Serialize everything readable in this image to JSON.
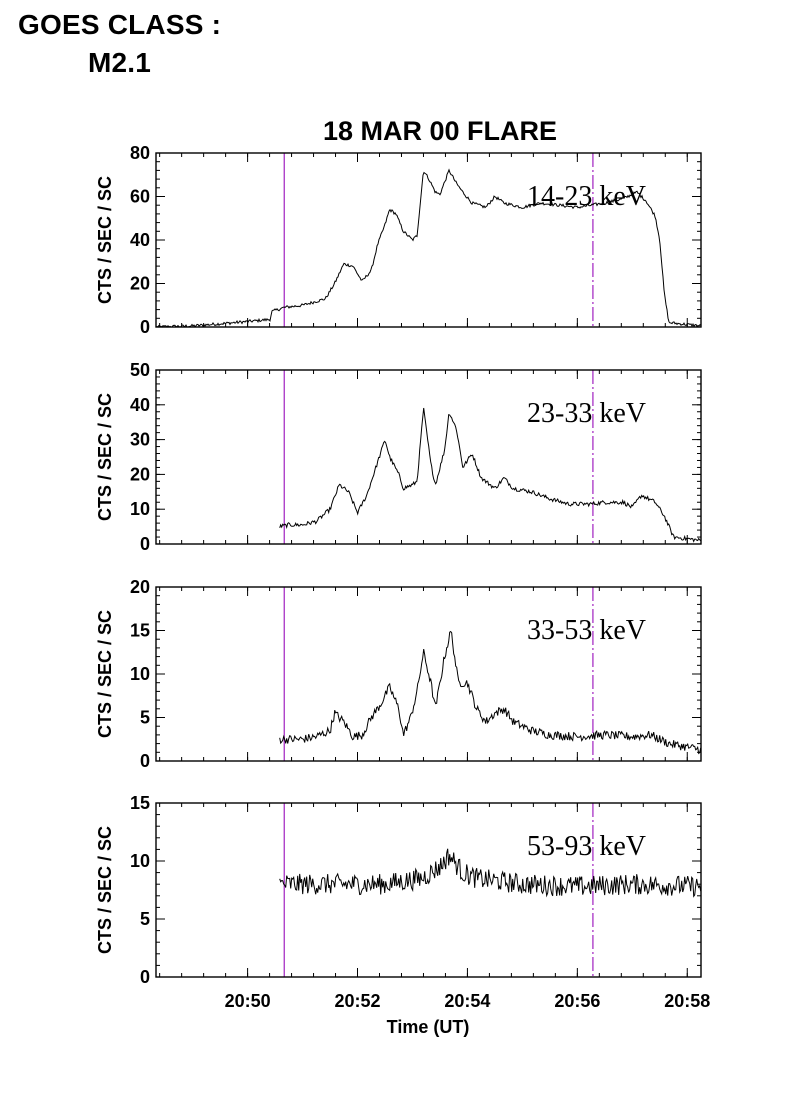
{
  "header": {
    "goes_line1": "GOES CLASS :",
    "goes_line2": "M2.1"
  },
  "colors": {
    "marker": "#a020c0",
    "trace": "#000000",
    "axis": "#000000"
  },
  "chart_data": {
    "type": "line",
    "title": "18 MAR 00 FLARE",
    "xlabel": "Time (UT)",
    "xlim": [
      "20:48:20",
      "20:58:15"
    ],
    "xticks": [
      "20:50",
      "20:52",
      "20:54",
      "20:56",
      "20:58"
    ],
    "xminor_ticks_per_major": 5,
    "grid": false,
    "vertical_markers": [
      {
        "time": "20:50:40",
        "style": "solid"
      },
      {
        "time": "20:56:17",
        "style": "dash-dot"
      }
    ],
    "panels": [
      {
        "band": "14-23 keV",
        "ylabel": "CTS / SEC / SC",
        "ylim": [
          0,
          80
        ],
        "yticks": [
          0,
          20,
          40,
          60,
          80
        ],
        "series": {
          "start": "20:48:20",
          "end": "20:58:15",
          "noise": 0.7,
          "points": [
            [
              "20:48:20",
              0
            ],
            [
              "20:49:00",
              0.5
            ],
            [
              "20:49:30",
              1.5
            ],
            [
              "20:50:00",
              2.5
            ],
            [
              "20:50:25",
              3.5
            ],
            [
              "20:50:26",
              7
            ],
            [
              "20:50:40",
              9
            ],
            [
              "20:51:00",
              10
            ],
            [
              "20:51:25",
              13
            ],
            [
              "20:51:35",
              20
            ],
            [
              "20:51:45",
              29
            ],
            [
              "20:51:55",
              28
            ],
            [
              "20:52:05",
              21
            ],
            [
              "20:52:15",
              26
            ],
            [
              "20:52:22",
              38
            ],
            [
              "20:52:30",
              47
            ],
            [
              "20:52:35",
              54
            ],
            [
              "20:52:42",
              52
            ],
            [
              "20:52:50",
              44
            ],
            [
              "20:53:00",
              40
            ],
            [
              "20:53:05",
              42
            ],
            [
              "20:53:12",
              72
            ],
            [
              "20:53:18",
              68
            ],
            [
              "20:53:25",
              62
            ],
            [
              "20:53:30",
              61
            ],
            [
              "20:53:40",
              72
            ],
            [
              "20:53:48",
              66
            ],
            [
              "20:53:55",
              62
            ],
            [
              "20:54:05",
              57
            ],
            [
              "20:54:20",
              55
            ],
            [
              "20:54:30",
              60
            ],
            [
              "20:54:40",
              57
            ],
            [
              "20:55:00",
              55
            ],
            [
              "20:55:20",
              57
            ],
            [
              "20:55:40",
              56
            ],
            [
              "20:56:00",
              55
            ],
            [
              "20:56:30",
              57
            ],
            [
              "20:56:50",
              59
            ],
            [
              "20:57:05",
              62
            ],
            [
              "20:57:15",
              58
            ],
            [
              "20:57:25",
              51
            ],
            [
              "20:57:30",
              40
            ],
            [
              "20:57:35",
              15
            ],
            [
              "20:57:40",
              2
            ],
            [
              "20:58:15",
              0.5
            ]
          ]
        }
      },
      {
        "band": "23-33 keV",
        "ylabel": "CTS / SEC / SC",
        "ylim": [
          0,
          50
        ],
        "yticks": [
          0,
          10,
          20,
          30,
          40,
          50
        ],
        "series": {
          "start": "20:50:35",
          "end": "20:58:15",
          "noise": 0.6,
          "points": [
            [
              "20:50:35",
              5
            ],
            [
              "20:50:45",
              5.5
            ],
            [
              "20:51:00",
              5.5
            ],
            [
              "20:51:15",
              6.5
            ],
            [
              "20:51:30",
              10
            ],
            [
              "20:51:40",
              17
            ],
            [
              "20:51:50",
              15
            ],
            [
              "20:52:00",
              9
            ],
            [
              "20:52:10",
              14
            ],
            [
              "20:52:20",
              22
            ],
            [
              "20:52:30",
              30
            ],
            [
              "20:52:35",
              25
            ],
            [
              "20:52:45",
              20
            ],
            [
              "20:52:50",
              16
            ],
            [
              "20:53:00",
              17
            ],
            [
              "20:53:05",
              18
            ],
            [
              "20:53:12",
              39
            ],
            [
              "20:53:20",
              23
            ],
            [
              "20:53:25",
              17
            ],
            [
              "20:53:35",
              27
            ],
            [
              "20:53:40",
              38
            ],
            [
              "20:53:48",
              33
            ],
            [
              "20:53:55",
              22
            ],
            [
              "20:54:05",
              26
            ],
            [
              "20:54:15",
              19
            ],
            [
              "20:54:30",
              16
            ],
            [
              "20:54:40",
              19
            ],
            [
              "20:54:50",
              16
            ],
            [
              "20:55:10",
              15
            ],
            [
              "20:55:30",
              13
            ],
            [
              "20:55:50",
              11.5
            ],
            [
              "20:56:15",
              11.5
            ],
            [
              "20:56:30",
              12
            ],
            [
              "20:56:50",
              12
            ],
            [
              "20:57:00",
              10.5
            ],
            [
              "20:57:10",
              14
            ],
            [
              "20:57:25",
              12
            ],
            [
              "20:57:35",
              8
            ],
            [
              "20:57:45",
              2
            ],
            [
              "20:58:15",
              1
            ]
          ]
        }
      },
      {
        "band": "33-53 keV",
        "ylabel": "CTS / SEC / SC",
        "ylim": [
          0,
          20
        ],
        "yticks": [
          0,
          5,
          10,
          15,
          20
        ],
        "series": {
          "start": "20:50:35",
          "end": "20:58:15",
          "noise": 0.5,
          "points": [
            [
              "20:50:35",
              2.5
            ],
            [
              "20:51:00",
              2.5
            ],
            [
              "20:51:15",
              2.8
            ],
            [
              "20:51:30",
              3.5
            ],
            [
              "20:51:35",
              5.5
            ],
            [
              "20:51:45",
              4.5
            ],
            [
              "20:51:55",
              2.8
            ],
            [
              "20:52:05",
              3
            ],
            [
              "20:52:15",
              5
            ],
            [
              "20:52:25",
              6.5
            ],
            [
              "20:52:35",
              8.5
            ],
            [
              "20:52:45",
              6
            ],
            [
              "20:52:50",
              3
            ],
            [
              "20:52:58",
              5
            ],
            [
              "20:53:05",
              8
            ],
            [
              "20:53:12",
              12.5
            ],
            [
              "20:53:20",
              9
            ],
            [
              "20:53:25",
              6
            ],
            [
              "20:53:35",
              12
            ],
            [
              "20:53:42",
              15
            ],
            [
              "20:53:50",
              9
            ],
            [
              "20:54:00",
              9
            ],
            [
              "20:54:10",
              6
            ],
            [
              "20:54:20",
              4.5
            ],
            [
              "20:54:30",
              5.5
            ],
            [
              "20:54:40",
              6
            ],
            [
              "20:54:50",
              4.5
            ],
            [
              "20:55:10",
              3.5
            ],
            [
              "20:55:30",
              3
            ],
            [
              "20:56:00",
              2.8
            ],
            [
              "20:56:30",
              3
            ],
            [
              "20:57:00",
              2.8
            ],
            [
              "20:57:20",
              3
            ],
            [
              "20:57:40",
              2
            ],
            [
              "20:58:15",
              1.3
            ]
          ]
        }
      },
      {
        "band": "53-93 keV",
        "ylabel": "CTS / SEC / SC",
        "ylim": [
          0,
          15
        ],
        "yticks": [
          0,
          5,
          10,
          15
        ],
        "series": {
          "start": "20:50:35",
          "end": "20:58:15",
          "noise": 0.9,
          "points": [
            [
              "20:50:35",
              8
            ],
            [
              "20:51:30",
              8
            ],
            [
              "20:52:30",
              8
            ],
            [
              "20:53:10",
              8.5
            ],
            [
              "20:53:30",
              9.5
            ],
            [
              "20:53:40",
              10.5
            ],
            [
              "20:53:55",
              9
            ],
            [
              "20:54:10",
              8.5
            ],
            [
              "20:55:00",
              8
            ],
            [
              "20:56:00",
              7.8
            ],
            [
              "20:57:00",
              8
            ],
            [
              "20:58:15",
              7.8
            ]
          ]
        }
      }
    ]
  }
}
